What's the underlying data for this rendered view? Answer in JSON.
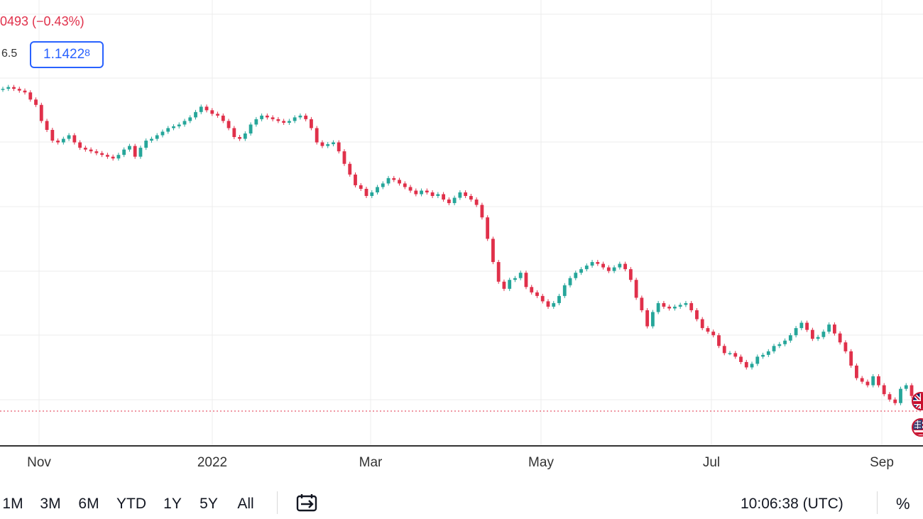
{
  "legend": {
    "change": "0493 (−0.43%)",
    "ask_label": "6.5",
    "price_main": "1.1422",
    "price_sup": "8"
  },
  "toolbar": {
    "ranges": [
      "1M",
      "3M",
      "6M",
      "YTD",
      "1Y",
      "5Y",
      "All"
    ],
    "goto_icon": "calendar-goto-icon",
    "clock": "10:06:38 (UTC)",
    "percent_label": "%"
  },
  "colors": {
    "up": "#26a69a",
    "down": "#e0304a",
    "accent": "#2962ff",
    "grid": "#ececec"
  },
  "chart_data": {
    "type": "candlestick",
    "title": "",
    "xlabel": "",
    "ylabel": "",
    "x_tick_labels": [
      "Nov",
      "2022",
      "Mar",
      "May",
      "Jul",
      "Sep"
    ],
    "grid": true,
    "series": [
      {
        "values": [
          1.162,
          1.163,
          1.162,
          1.161,
          1.16,
          1.156,
          1.153,
          1.144,
          1.139,
          1.133,
          1.132,
          1.134,
          1.136,
          1.132,
          1.129,
          1.128,
          1.127,
          1.126,
          1.125,
          1.124,
          1.123,
          1.125,
          1.128,
          1.13,
          1.124,
          1.129,
          1.133,
          1.134,
          1.136,
          1.138,
          1.14,
          1.141,
          1.142,
          1.144,
          1.146,
          1.149,
          1.152,
          1.15,
          1.148,
          1.147,
          1.144,
          1.14,
          1.135,
          1.134,
          1.137,
          1.142,
          1.145,
          1.147,
          1.146,
          1.145,
          1.144,
          1.143,
          1.144,
          1.146,
          1.147,
          1.145,
          1.14,
          1.132,
          1.13,
          1.131,
          1.132,
          1.127,
          1.12,
          1.114,
          1.108,
          1.106,
          1.102,
          1.104,
          1.107,
          1.109,
          1.112,
          1.111,
          1.109,
          1.107,
          1.105,
          1.103,
          1.105,
          1.104,
          1.102,
          1.103,
          1.1,
          1.098,
          1.101,
          1.104,
          1.102,
          1.1,
          1.097,
          1.09,
          1.078,
          1.065,
          1.054,
          1.05,
          1.055,
          1.056,
          1.059,
          1.051,
          1.048,
          1.046,
          1.043,
          1.04,
          1.042,
          1.046,
          1.052,
          1.056,
          1.059,
          1.061,
          1.063,
          1.065,
          1.064,
          1.062,
          1.06,
          1.062,
          1.064,
          1.061,
          1.055,
          1.045,
          1.038,
          1.029,
          1.037,
          1.042,
          1.04,
          1.039,
          1.04,
          1.041,
          1.042,
          1.038,
          1.033,
          1.028,
          1.026,
          1.024,
          1.018,
          1.014,
          1.014,
          1.012,
          1.009,
          1.006,
          1.008,
          1.012,
          1.013,
          1.015,
          1.018,
          1.019,
          1.021,
          1.024,
          1.028,
          1.031,
          1.027,
          1.022,
          1.023,
          1.026,
          1.03,
          1.025,
          1.02,
          1.015,
          1.007,
          1.0,
          0.998,
          0.996,
          1.001,
          0.996,
          0.991,
          0.988,
          0.986,
          0.994,
          0.996,
          0.99
        ]
      }
    ]
  }
}
